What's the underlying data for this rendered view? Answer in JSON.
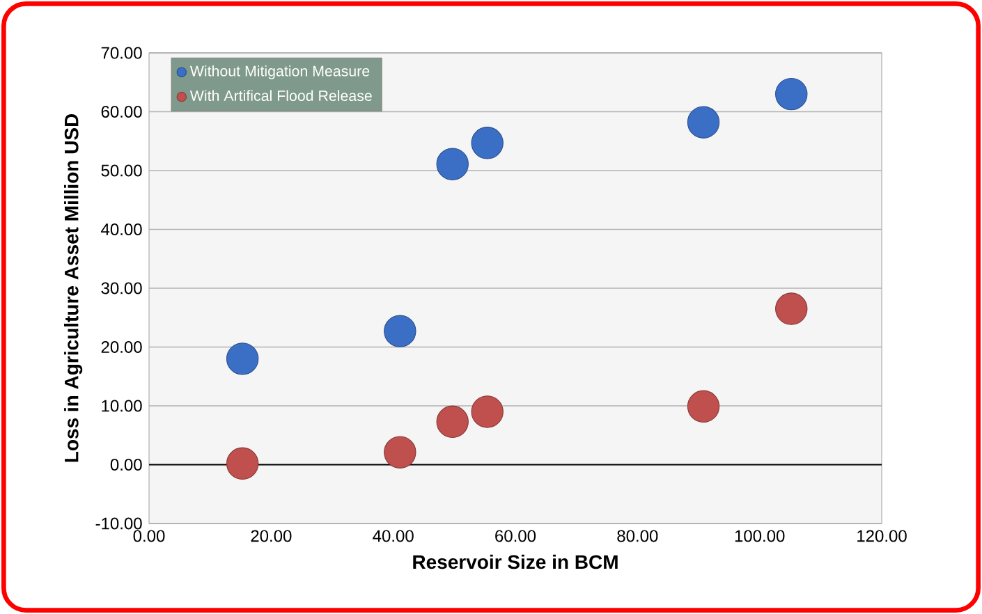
{
  "chart_data": {
    "type": "scatter",
    "xlabel": "Reservoir Size in BCM",
    "ylabel": "Loss in Agriculture Asset Million USD",
    "xlim": [
      0,
      120
    ],
    "ylim": [
      -10,
      70
    ],
    "xticks": [
      {
        "value": 0,
        "label": "0.00"
      },
      {
        "value": 20,
        "label": "20.00"
      },
      {
        "value": 40,
        "label": "40.00"
      },
      {
        "value": 60,
        "label": "60.00"
      },
      {
        "value": 80,
        "label": "80.00"
      },
      {
        "value": 100,
        "label": "100.00"
      },
      {
        "value": 120,
        "label": "120.00"
      }
    ],
    "yticks": [
      {
        "value": -10,
        "label": "-10.00"
      },
      {
        "value": 0,
        "label": "0.00"
      },
      {
        "value": 10,
        "label": "10.00"
      },
      {
        "value": 20,
        "label": "20.00"
      },
      {
        "value": 30,
        "label": "30.00"
      },
      {
        "value": 40,
        "label": "40.00"
      },
      {
        "value": 50,
        "label": "50.00"
      },
      {
        "value": 60,
        "label": "60.00"
      },
      {
        "value": 70,
        "label": "70.00"
      }
    ],
    "grid": "y",
    "legend": "top left",
    "ref_lines": [
      {
        "axis": "y",
        "value": 0,
        "color": "#000000"
      }
    ],
    "series": [
      {
        "name": "Without Mitigation Measure",
        "color": "#3b6fc6",
        "x": [
          15.3,
          41.1,
          49.7,
          55.4,
          90.8,
          105.2
        ],
        "values": [
          18.0,
          22.7,
          51.1,
          54.7,
          58.2,
          63.0
        ]
      },
      {
        "name": "With Artifical Flood Release",
        "color": "#c0504d",
        "x": [
          15.3,
          41.1,
          49.7,
          55.4,
          90.8,
          105.2
        ],
        "values": [
          0.2,
          2.1,
          7.3,
          9.0,
          9.9,
          26.5
        ]
      }
    ]
  }
}
